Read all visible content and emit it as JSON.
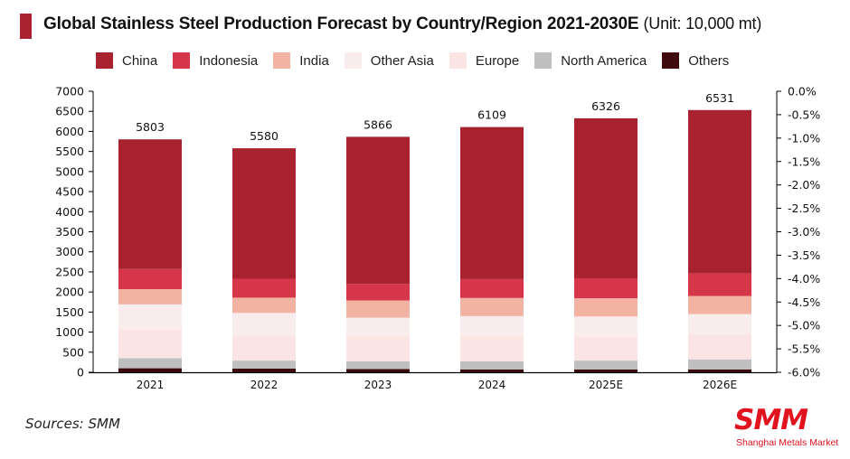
{
  "header": {
    "title": "Global Stainless Steel Production Forecast by Country/Region 2021-2030E",
    "unit_note": "(Unit: 10,000 mt)"
  },
  "footer": {
    "sources": "Sources:  SMM",
    "logo_text": "SMM",
    "logo_subtitle": "Shanghai Metals Market",
    "logo_color": "#E0131F"
  },
  "chart_data": {
    "type": "bar",
    "stacked": true,
    "title": "Global Stainless Steel Production Forecast by Country/Region 2021-2030E",
    "subtitle": "(Unit: 10,000 mt)",
    "xlabel": "",
    "ylabel": "",
    "categories": [
      "2021",
      "2022",
      "2023",
      "2024",
      "2025E",
      "2026E"
    ],
    "series": [
      {
        "name": "Others",
        "color": "#3F0A0D",
        "values": [
          100,
          90,
          80,
          70,
          70,
          70
        ]
      },
      {
        "name": "North America",
        "color": "#BFBFBF",
        "values": [
          250,
          200,
          190,
          200,
          220,
          250
        ]
      },
      {
        "name": "Europe",
        "color": "#FBE5E4",
        "values": [
          710,
          630,
          620,
          620,
          590,
          610
        ]
      },
      {
        "name": "Other Asia",
        "color": "#F9ECEC",
        "values": [
          630,
          560,
          470,
          510,
          510,
          520
        ]
      },
      {
        "name": "India",
        "color": "#F3B3A3",
        "values": [
          380,
          380,
          430,
          450,
          450,
          450
        ]
      },
      {
        "name": "Indonesia",
        "color": "#D63649",
        "values": [
          500,
          470,
          410,
          470,
          500,
          560
        ]
      },
      {
        "name": "China",
        "color": "#A8232F",
        "values": [
          3233,
          3250,
          3666,
          3789,
          3986,
          4071
        ]
      }
    ],
    "totals": [
      5803,
      5580,
      5866,
      6109,
      6326,
      6531
    ],
    "total_labels": [
      "5803",
      "5580",
      "5866",
      "6109",
      "6326",
      "6531"
    ],
    "legend": [
      "China",
      "Indonesia",
      "India",
      "Other Asia",
      "Europe",
      "North America",
      "Others"
    ],
    "legend_position": "top",
    "ylim": [
      0,
      7000
    ],
    "yticks": [
      0,
      500,
      1000,
      1500,
      2000,
      2500,
      3000,
      3500,
      4000,
      4500,
      5000,
      5500,
      6000,
      6500,
      7000
    ],
    "ytick_labels": [
      "0",
      "500",
      "1000",
      "1500",
      "2000",
      "2500",
      "3000",
      "3500",
      "4000",
      "4500",
      "5000",
      "5500",
      "6000",
      "6500",
      "7000"
    ],
    "y2lim": [
      -6.0,
      0.0
    ],
    "y2tick_labels": [
      "0.0%",
      "-0.5%",
      "-1.0%",
      "-1.5%",
      "-2.0%",
      "-2.5%",
      "-3.0%",
      "-3.5%",
      "-4.0%",
      "-4.5%",
      "-5.0%",
      "-5.5%",
      "-6.0%"
    ],
    "grid": false
  }
}
